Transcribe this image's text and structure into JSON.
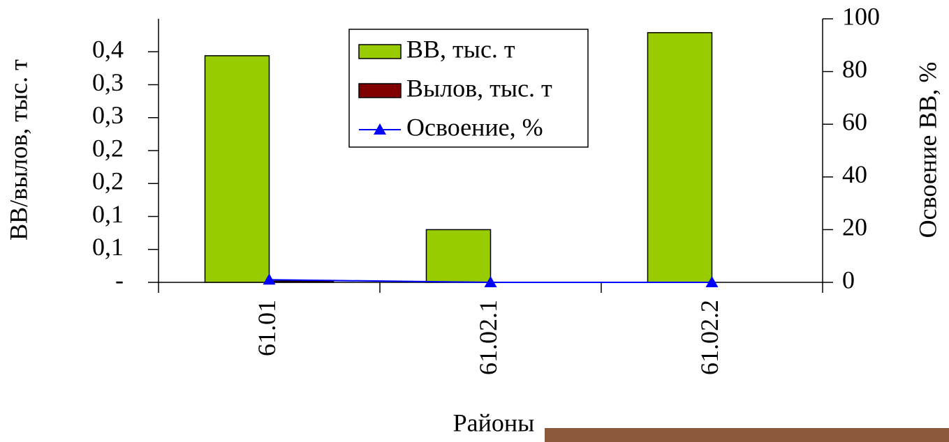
{
  "chart_data": {
    "type": "bar_line",
    "x_label": "Районы",
    "y_label": "ВВ/вылов, тыс. т",
    "y2_label": "Освоение ВВ, %",
    "categories": [
      "61.01",
      "61.02.1",
      "61.02.2"
    ],
    "series": [
      {
        "name": "ВВ, тыс. т",
        "type": "bar",
        "color": "#99cc00",
        "values": [
          0.344,
          0.08,
          0.379
        ]
      },
      {
        "name": "Вылов, тыс. т",
        "type": "bar",
        "color": "#800000",
        "values": [
          0.002,
          0,
          0
        ]
      },
      {
        "name": "Освоение, %",
        "type": "line",
        "axis": "y2",
        "color": "#0000ff",
        "values": [
          1,
          0,
          0
        ]
      }
    ],
    "ylim": [
      0,
      0.4
    ],
    "yticks": [
      {
        "value": 0,
        "label": "-"
      },
      {
        "value": 0.05,
        "label": "0,1"
      },
      {
        "value": 0.1,
        "label": "0,1"
      },
      {
        "value": 0.15,
        "label": "0,2"
      },
      {
        "value": 0.2,
        "label": "0,2"
      },
      {
        "value": 0.25,
        "label": "0,3"
      },
      {
        "value": 0.3,
        "label": "0,3"
      },
      {
        "value": 0.35,
        "label": "0,4"
      }
    ],
    "y2lim": [
      0,
      100
    ],
    "y2ticks": [
      0,
      20,
      40,
      60,
      80,
      100
    ],
    "legend": "top-center"
  }
}
